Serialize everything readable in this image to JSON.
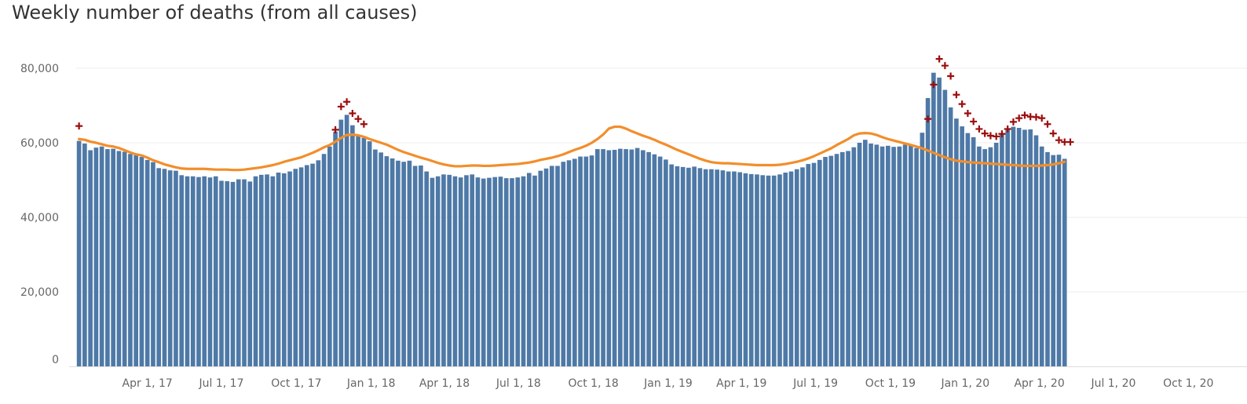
{
  "chart_data": {
    "type": "bar",
    "title": "Weekly number of deaths (from all causes)",
    "xlabel": "",
    "ylabel": "",
    "ylim": [
      0,
      80000
    ],
    "grid": true,
    "colors": {
      "bars": "#4e79a7",
      "expected_line": "#f28e2b",
      "excess_marker": "#9c0d0d"
    },
    "y_ticks": [
      {
        "value": 0,
        "label": "0"
      },
      {
        "value": 20000,
        "label": "20,000"
      },
      {
        "value": 40000,
        "label": "40,000"
      },
      {
        "value": 60000,
        "label": "60,000"
      },
      {
        "value": 80000,
        "label": "80,000"
      }
    ],
    "x_ticks": [
      {
        "date": "2017-04-01",
        "label": "Apr 1, 17"
      },
      {
        "date": "2017-07-01",
        "label": "Jul 1, 17"
      },
      {
        "date": "2017-10-01",
        "label": "Oct 1, 17"
      },
      {
        "date": "2018-01-01",
        "label": "Jan 1, 18"
      },
      {
        "date": "2018-04-01",
        "label": "Apr 1, 18"
      },
      {
        "date": "2018-07-01",
        "label": "Jul 1, 18"
      },
      {
        "date": "2018-10-01",
        "label": "Oct 1, 18"
      },
      {
        "date": "2019-01-01",
        "label": "Jan 1, 19"
      },
      {
        "date": "2019-04-01",
        "label": "Apr 1, 19"
      },
      {
        "date": "2019-07-01",
        "label": "Jul 1, 19"
      },
      {
        "date": "2019-10-01",
        "label": "Oct 1, 19"
      },
      {
        "date": "2020-01-01",
        "label": "Jan 1, 20"
      },
      {
        "date": "2020-04-01",
        "label": "Apr 1, 20"
      },
      {
        "date": "2020-07-01",
        "label": "Jul 1, 20"
      },
      {
        "date": "2020-10-01",
        "label": "Oct 1, 20"
      }
    ],
    "series": [
      {
        "type": "bar",
        "week_ending_start": "2017-01-07",
        "values": [
          60500,
          59800,
          58000,
          58700,
          59000,
          58300,
          58400,
          57800,
          57600,
          57000,
          56700,
          56200,
          55400,
          54800,
          53200,
          53000,
          52600,
          52500,
          51300,
          51000,
          51000,
          50800,
          51000,
          50700,
          51000,
          49800,
          49700,
          49500,
          50200,
          50200,
          49600,
          51000,
          51400,
          51500,
          51000,
          52000,
          51800,
          52300,
          53000,
          53400,
          54000,
          54400,
          55300,
          57000,
          59000,
          63000,
          66200,
          67500,
          64700,
          62000,
          61300,
          60400,
          58200,
          57400,
          56400,
          55800,
          55200,
          54900,
          55200,
          53800,
          53900,
          52300,
          50600,
          51000,
          51500,
          51400,
          51000,
          50700,
          51300,
          51500,
          50700,
          50400,
          50600,
          50800,
          50900,
          50500,
          50500,
          50700,
          51000,
          51900,
          51200,
          52500,
          53100,
          53800,
          53800,
          54900,
          55300,
          55700,
          56300,
          56300,
          56600,
          58300,
          58300,
          58000,
          58100,
          58400,
          58300,
          58200,
          58600,
          58000,
          57500,
          56900,
          56300,
          55500,
          54200,
          53700,
          53500,
          53300,
          53600,
          53200,
          52900,
          52900,
          52800,
          52600,
          52300,
          52300,
          52100,
          51800,
          51600,
          51500,
          51300,
          51200,
          51200,
          51500,
          52000,
          52300,
          52900,
          53400,
          54300,
          54600,
          55400,
          56200,
          56500,
          57000,
          57500,
          57800,
          58800,
          60000,
          60800,
          59800,
          59500,
          59000,
          59200,
          58900,
          59000,
          59500,
          59400,
          58600,
          62700,
          72000,
          78800,
          77500,
          74200,
          69500,
          66500,
          64400,
          62600,
          61500,
          59000,
          58300,
          58800,
          60000,
          62400,
          63500,
          64300,
          64000,
          63500,
          63600,
          62000,
          59000,
          57500,
          56700,
          56800,
          55700
        ]
      },
      {
        "type": "line",
        "name": "expected",
        "week_ending_start": "2017-01-07",
        "values": [
          61000,
          60800,
          60300,
          60000,
          59600,
          59200,
          59000,
          58600,
          58000,
          57400,
          56900,
          56600,
          56000,
          55300,
          54800,
          54200,
          53800,
          53400,
          53100,
          53000,
          53000,
          53000,
          53000,
          52900,
          52800,
          52800,
          52800,
          52700,
          52700,
          52800,
          53000,
          53200,
          53400,
          53700,
          54000,
          54400,
          54900,
          55300,
          55700,
          56100,
          56700,
          57300,
          58000,
          58800,
          59400,
          60300,
          61300,
          62100,
          62200,
          62000,
          61600,
          61000,
          60500,
          60000,
          59500,
          58800,
          58100,
          57500,
          57000,
          56500,
          56000,
          55600,
          55100,
          54600,
          54200,
          53900,
          53700,
          53700,
          53800,
          53900,
          53900,
          53800,
          53800,
          53900,
          54000,
          54100,
          54200,
          54300,
          54500,
          54700,
          55000,
          55400,
          55700,
          56000,
          56400,
          56900,
          57500,
          58100,
          58600,
          59200,
          60000,
          61000,
          62200,
          63800,
          64300,
          64300,
          63800,
          63100,
          62500,
          61900,
          61400,
          60800,
          60100,
          59500,
          58800,
          58100,
          57500,
          56900,
          56300,
          55700,
          55200,
          54800,
          54600,
          54500,
          54500,
          54400,
          54300,
          54200,
          54100,
          54000,
          54000,
          54000,
          54000,
          54100,
          54300,
          54600,
          54900,
          55300,
          55800,
          56400,
          57100,
          57800,
          58500,
          59400,
          60200,
          61000,
          62000,
          62500,
          62600,
          62500,
          62100,
          61500,
          61000,
          60600,
          60200,
          59800,
          59400,
          59000,
          58500,
          57900,
          57300,
          56700,
          56100,
          55600,
          55200,
          55000,
          54800,
          54700,
          54600,
          54500,
          54400,
          54300,
          54200,
          54100,
          54000,
          53900,
          53800,
          53800,
          53800,
          53900,
          54000,
          54200,
          54500,
          54900
        ]
      },
      {
        "type": "marker",
        "name": "excess",
        "marker": "+",
        "points": [
          {
            "week": 0,
            "value": 64500
          },
          {
            "week": 45,
            "value": 63500
          },
          {
            "week": 46,
            "value": 69700
          },
          {
            "week": 47,
            "value": 71000
          },
          {
            "week": 48,
            "value": 67900
          },
          {
            "week": 49,
            "value": 66400
          },
          {
            "week": 50,
            "value": 65000
          },
          {
            "week": 149,
            "value": 66400
          },
          {
            "week": 150,
            "value": 75600
          },
          {
            "week": 151,
            "value": 82500
          },
          {
            "week": 152,
            "value": 80700
          },
          {
            "week": 153,
            "value": 77900
          },
          {
            "week": 154,
            "value": 72900
          },
          {
            "week": 155,
            "value": 70400
          },
          {
            "week": 156,
            "value": 67900
          },
          {
            "week": 157,
            "value": 65700
          },
          {
            "week": 158,
            "value": 63700
          },
          {
            "week": 159,
            "value": 62500
          },
          {
            "week": 160,
            "value": 61900
          },
          {
            "week": 161,
            "value": 61700
          },
          {
            "week": 162,
            "value": 62400
          },
          {
            "week": 163,
            "value": 63700
          },
          {
            "week": 164,
            "value": 65600
          },
          {
            "week": 165,
            "value": 66600
          },
          {
            "week": 166,
            "value": 67400
          },
          {
            "week": 167,
            "value": 67000
          },
          {
            "week": 168,
            "value": 66900
          },
          {
            "week": 169,
            "value": 66600
          },
          {
            "week": 170,
            "value": 65000
          },
          {
            "week": 171,
            "value": 62500
          },
          {
            "week": 172,
            "value": 60700
          },
          {
            "week": 173,
            "value": 60200
          },
          {
            "week": 174,
            "value": 60200
          }
        ]
      }
    ]
  }
}
